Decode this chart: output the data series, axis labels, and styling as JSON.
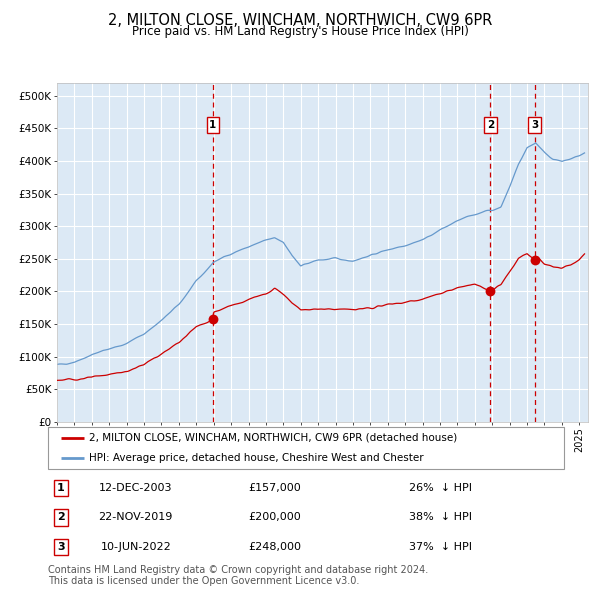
{
  "title": "2, MILTON CLOSE, WINCHAM, NORTHWICH, CW9 6PR",
  "subtitle": "Price paid vs. HM Land Registry's House Price Index (HPI)",
  "red_line_label": "2, MILTON CLOSE, WINCHAM, NORTHWICH, CW9 6PR (detached house)",
  "blue_line_label": "HPI: Average price, detached house, Cheshire West and Chester",
  "transactions": [
    {
      "num": 1,
      "date": "12-DEC-2003",
      "price": 157000,
      "pct": "26%",
      "dir": "↓"
    },
    {
      "num": 2,
      "date": "22-NOV-2019",
      "price": 200000,
      "pct": "38%",
      "dir": "↓"
    },
    {
      "num": 3,
      "date": "10-JUN-2022",
      "price": 248000,
      "pct": "37%",
      "dir": "↓"
    }
  ],
  "transaction_dates_decimal": [
    2003.95,
    2019.89,
    2022.44
  ],
  "transaction_prices": [
    157000,
    200000,
    248000
  ],
  "ylabel_values": [
    0,
    50000,
    100000,
    150000,
    200000,
    250000,
    300000,
    350000,
    400000,
    450000,
    500000
  ],
  "ylabel_labels": [
    "£0",
    "£50K",
    "£100K",
    "£150K",
    "£200K",
    "£250K",
    "£300K",
    "£350K",
    "£400K",
    "£450K",
    "£500K"
  ],
  "ylim": [
    0,
    520000
  ],
  "xlim_start": 1995.0,
  "xlim_end": 2025.5,
  "plot_bg_color": "#dce9f5",
  "outer_bg_color": "#ffffff",
  "grid_color": "#ffffff",
  "red_line_color": "#cc0000",
  "blue_line_color": "#6699cc",
  "vline_color": "#cc0000",
  "footer_text": "Contains HM Land Registry data © Crown copyright and database right 2024.\nThis data is licensed under the Open Government Licence v3.0.",
  "blue_anchors_t": [
    1995,
    1996,
    1997,
    1998,
    1999,
    2000,
    2001,
    2002,
    2003,
    2004,
    2005,
    2006,
    2007,
    2007.5,
    2008,
    2008.5,
    2009,
    2009.5,
    2010,
    2011,
    2012,
    2013,
    2014,
    2015,
    2016,
    2017,
    2018,
    2019,
    2019.5,
    2020,
    2020.5,
    2021,
    2021.5,
    2022,
    2022.5,
    2023,
    2023.5,
    2024,
    2024.5,
    2025,
    2025.3
  ],
  "blue_anchors_v": [
    87000,
    92000,
    103000,
    112000,
    120000,
    135000,
    155000,
    180000,
    215000,
    245000,
    258000,
    268000,
    278000,
    282000,
    276000,
    255000,
    238000,
    244000,
    248000,
    250000,
    247000,
    255000,
    264000,
    271000,
    279000,
    294000,
    308000,
    318000,
    323000,
    324000,
    330000,
    360000,
    395000,
    420000,
    428000,
    413000,
    403000,
    398000,
    403000,
    408000,
    412000
  ],
  "red_anchors_t": [
    1995,
    1996,
    1997,
    1998,
    1999,
    2000,
    2001,
    2002,
    2003,
    2003.95,
    2004,
    2005,
    2006,
    2007,
    2007.5,
    2008,
    2008.5,
    2009,
    2010,
    2011,
    2012,
    2013,
    2014,
    2015,
    2016,
    2017,
    2018,
    2019,
    2019.89,
    2020,
    2020.5,
    2021,
    2021.5,
    2022,
    2022.44,
    2022.6,
    2023,
    2023.5,
    2024,
    2024.5,
    2025,
    2025.3
  ],
  "red_anchors_v": [
    64000,
    65000,
    68000,
    73000,
    77000,
    88000,
    104000,
    122000,
    146000,
    157000,
    168000,
    178000,
    188000,
    196000,
    205000,
    196000,
    183000,
    172000,
    173000,
    173000,
    172000,
    174000,
    180000,
    183000,
    188000,
    196000,
    205000,
    212000,
    200000,
    202000,
    210000,
    230000,
    250000,
    258000,
    248000,
    252000,
    242000,
    237000,
    238000,
    241000,
    249000,
    258000
  ]
}
